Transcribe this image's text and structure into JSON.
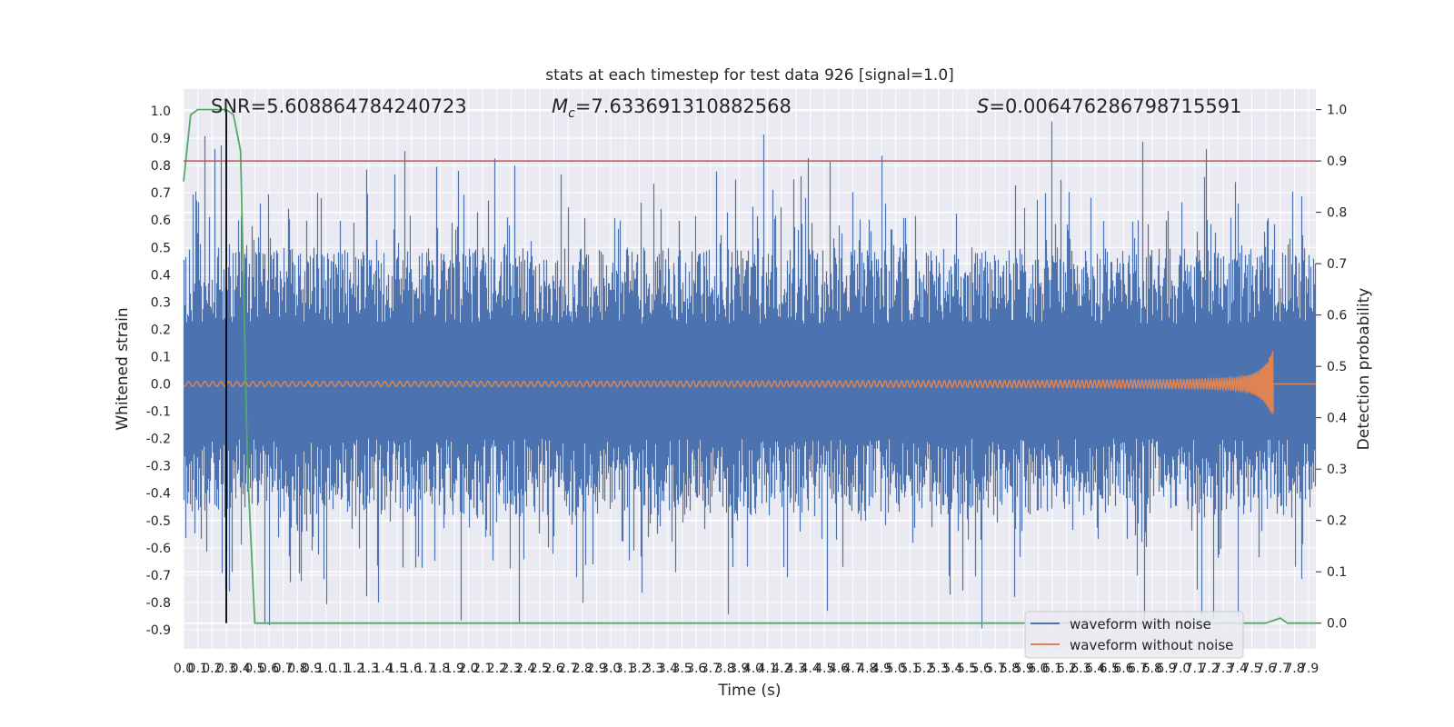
{
  "chart_data": {
    "type": "line",
    "title": "stats at each timestep for test data 926 [signal=1.0]",
    "xlabel": "Time (s)",
    "ylabel_left": "Whitened strain",
    "ylabel_right": "Detection probability",
    "xlim": [
      0.0,
      7.95
    ],
    "ylim_left": [
      -0.97,
      1.08
    ],
    "ylim_right": [
      -0.05,
      1.04
    ],
    "x_ticks": [
      "0.0",
      "0.1",
      "0.2",
      "0.3",
      "0.4",
      "0.5",
      "0.6",
      "0.7",
      "0.8",
      "0.9",
      "1.0",
      "1.1",
      "1.2",
      "1.3",
      "1.4",
      "1.5",
      "1.6",
      "1.7",
      "1.8",
      "1.9",
      "2.0",
      "2.1",
      "2.2",
      "2.3",
      "2.4",
      "2.5",
      "2.6",
      "2.7",
      "2.8",
      "2.9",
      "3.0",
      "3.1",
      "3.2",
      "3.3",
      "3.4",
      "3.5",
      "3.6",
      "3.7",
      "3.8",
      "3.9",
      "4.0",
      "4.1",
      "4.2",
      "4.3",
      "4.4",
      "4.5",
      "4.6",
      "4.7",
      "4.8",
      "4.9",
      "5.0",
      "5.1",
      "5.2",
      "5.3",
      "5.4",
      "5.5",
      "5.6",
      "5.7",
      "5.8",
      "5.9",
      "6.0",
      "6.1",
      "6.2",
      "6.3",
      "6.4",
      "6.5",
      "6.6",
      "6.7",
      "6.8",
      "6.9",
      "7.0",
      "7.1",
      "7.2",
      "7.3",
      "7.4",
      "7.5",
      "7.6",
      "7.7",
      "7.8",
      "7.9"
    ],
    "y_ticks_left": [
      "-0.9",
      "-0.8",
      "-0.7",
      "-0.6",
      "-0.5",
      "-0.4",
      "-0.3",
      "-0.2",
      "-0.1",
      "0.0",
      "0.1",
      "0.2",
      "0.3",
      "0.4",
      "0.5",
      "0.6",
      "0.7",
      "0.8",
      "0.9",
      "1.0"
    ],
    "y_ticks_right": [
      "0.0",
      "0.1",
      "0.2",
      "0.3",
      "0.4",
      "0.5",
      "0.6",
      "0.7",
      "0.8",
      "0.9",
      "1.0"
    ],
    "annotations": {
      "snr": "SNR=5.608864784240723",
      "mc_symbol": "M",
      "mc_sub": "c",
      "mc_value": "=7.633691310882568",
      "s_symbol": "S",
      "s_value": "=0.006476286798715591"
    },
    "threshold_probability": 0.9,
    "marker_time": 0.3,
    "series": [
      {
        "name": "waveform with noise",
        "color": "#4c72b0",
        "description": "whitened noisy strain, roughly within -0.9 to 1.0"
      },
      {
        "name": "waveform without noise",
        "color": "#dd8452",
        "description": "chirp signal, amplitude grows to ~0.13 near t=7.65s then stops"
      },
      {
        "name": "detection probability",
        "color": "#55a868",
        "x": [
          0.0,
          0.05,
          0.1,
          0.15,
          0.2,
          0.25,
          0.3,
          0.35,
          0.4,
          0.45,
          0.5,
          1.0,
          2.0,
          3.0,
          4.0,
          5.0,
          6.0,
          7.0,
          7.5,
          7.55,
          7.6,
          7.65,
          7.7,
          7.75,
          7.8,
          7.85,
          7.9,
          7.95
        ],
        "y": [
          0.86,
          0.99,
          1.0,
          1.0,
          1.0,
          1.0,
          1.0,
          0.99,
          0.92,
          0.3,
          0.0,
          0.0,
          0.0,
          0.0,
          0.0,
          0.0,
          0.0,
          0.0,
          0.0,
          0.0,
          0.0,
          0.005,
          0.01,
          0.0,
          0.0,
          0.0,
          0.0,
          0.0
        ]
      }
    ],
    "legend": {
      "position": "lower-right",
      "entries": [
        "waveform with noise",
        "waveform without noise"
      ]
    },
    "colors": {
      "background": "#eaeaf2",
      "grid": "#ffffff",
      "threshold": "#c44e52",
      "marker": "#000000"
    },
    "grid": true
  }
}
